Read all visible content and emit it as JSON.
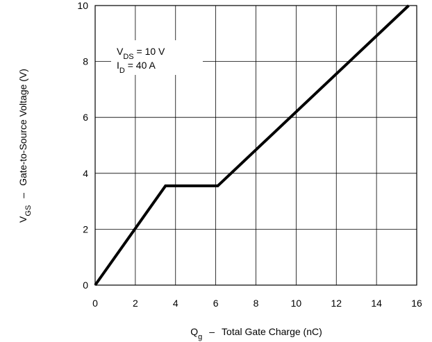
{
  "chart_data": {
    "type": "line",
    "series": [
      {
        "x": [
          0,
          3.5,
          6.1,
          15.6
        ],
        "y": [
          0,
          3.55,
          3.55,
          10
        ]
      }
    ],
    "xlim": [
      0,
      16
    ],
    "ylim": [
      0,
      10
    ],
    "xticks": [
      0,
      2,
      4,
      6,
      8,
      10,
      12,
      14,
      16
    ],
    "yticks": [
      0,
      2,
      4,
      6,
      8,
      10
    ],
    "grid": true,
    "xlabel": {
      "symbol": "Q",
      "sub": "g",
      "dash": "–",
      "text": "Total Gate Charge (nC)"
    },
    "ylabel": {
      "symbol": "V",
      "sub": "GS",
      "dash": "–",
      "text": "Gate-to-Source Voltage (V)"
    },
    "annotations": [
      {
        "symbol": "V",
        "sub": "DS",
        "rest": " = 10 V"
      },
      {
        "symbol": "I",
        "sub": "D",
        "rest": " = 40 A"
      }
    ]
  }
}
